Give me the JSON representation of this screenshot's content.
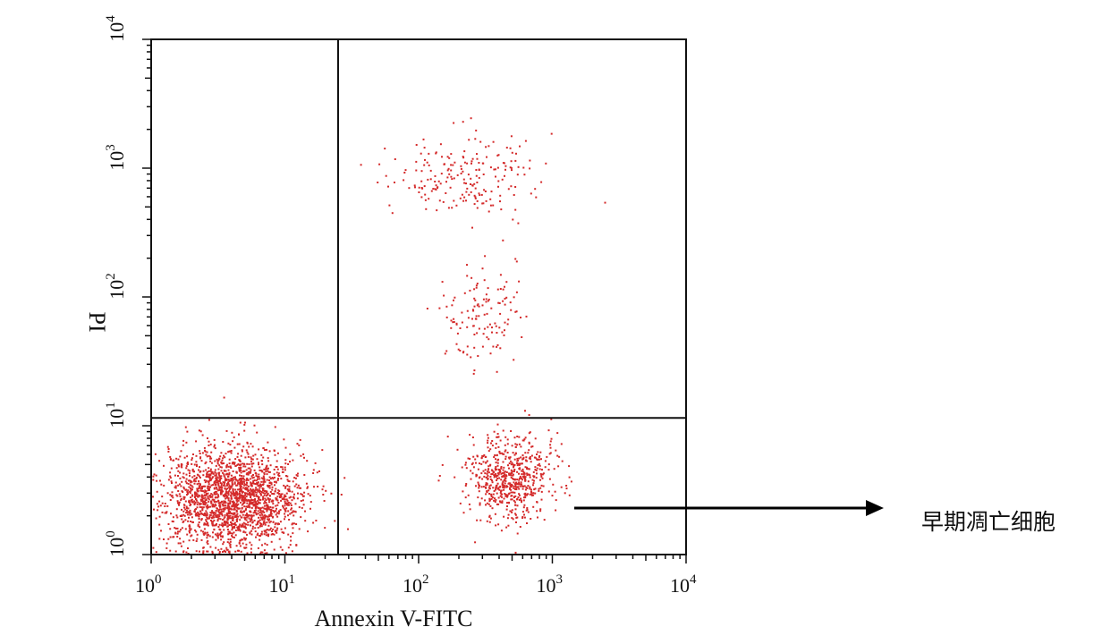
{
  "chart_data": {
    "type": "scatter",
    "title": "",
    "xlabel": "Annexin V-FITC",
    "ylabel": "PI",
    "xscale": "log",
    "yscale": "log",
    "xlim": [
      1,
      10000
    ],
    "ylim": [
      1,
      10000
    ],
    "x_ticks": [
      {
        "base": "10",
        "exp": "0"
      },
      {
        "base": "10",
        "exp": "1"
      },
      {
        "base": "10",
        "exp": "2"
      },
      {
        "base": "10",
        "exp": "3"
      },
      {
        "base": "10",
        "exp": "4"
      }
    ],
    "y_ticks": [
      {
        "base": "10",
        "exp": "0"
      },
      {
        "base": "10",
        "exp": "1"
      },
      {
        "base": "10",
        "exp": "2"
      },
      {
        "base": "10",
        "exp": "3"
      },
      {
        "base": "10",
        "exp": "4"
      }
    ],
    "quadrant_gates": {
      "x": 25,
      "y": 11.5
    },
    "point_color": "#d42a2a",
    "grid": false,
    "legend": "none",
    "clusters": [
      {
        "population": "viable (lower-left)",
        "x_center": 4.0,
        "y_center": 2.8,
        "x_log_spread": 0.26,
        "y_log_spread": 0.2,
        "approx_events": 2100
      },
      {
        "population": "early apoptotic (lower-right)",
        "x_center": 480,
        "y_center": 4.0,
        "x_log_spread": 0.16,
        "y_log_spread": 0.17,
        "approx_events": 650
      },
      {
        "population": "late apoptotic (upper-right, high PI)",
        "x_center": 220,
        "y_center": 900,
        "x_log_spread": 0.28,
        "y_log_spread": 0.16,
        "approx_events": 210
      },
      {
        "population": "late apoptotic (upper-right, mid PI)",
        "x_center": 280,
        "y_center": 70,
        "x_log_spread": 0.14,
        "y_log_spread": 0.2,
        "approx_events": 130
      }
    ],
    "annotations": [
      {
        "text": "早期凋亡细胞",
        "points_to": "early apoptotic (lower-right)",
        "arrow": "right"
      }
    ]
  }
}
